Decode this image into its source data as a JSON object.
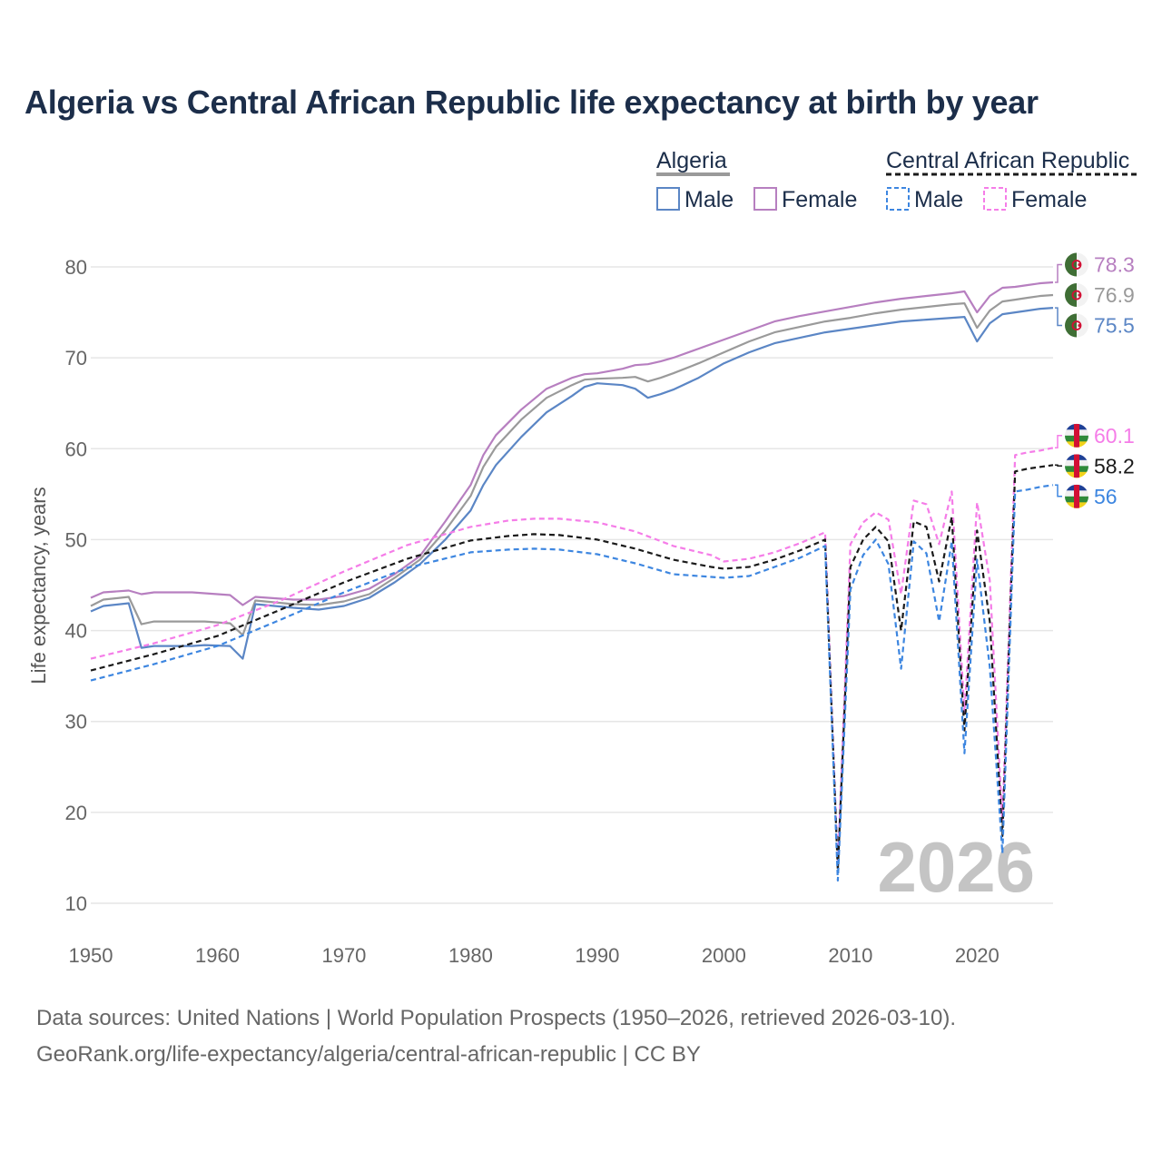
{
  "chart_data": {
    "type": "line",
    "title": "Algeria vs Central African Republic life expectancy at birth by year",
    "ylabel": "Life expectancy, years",
    "xlabel": "",
    "xlim": [
      1950,
      2026
    ],
    "ylim": [
      10,
      80
    ],
    "x_ticks": [
      1950,
      1960,
      1970,
      1980,
      1990,
      2000,
      2010,
      2020
    ],
    "y_ticks": [
      10,
      20,
      30,
      40,
      50,
      60,
      70,
      80
    ],
    "watermark_year": "2026",
    "legend": {
      "groups": [
        {
          "name": "Algeria",
          "entries": [
            "Male",
            "Female"
          ]
        },
        {
          "name": "Central African Republic",
          "entries": [
            "Male",
            "Female"
          ]
        }
      ]
    },
    "series": [
      {
        "name": "Algeria Female",
        "country": "Algeria",
        "color": "#b77fc0",
        "dashed": false,
        "end_label": "78.3",
        "points": [
          [
            1950,
            43.6
          ],
          [
            1951,
            44.2
          ],
          [
            1953,
            44.4
          ],
          [
            1954,
            44.0
          ],
          [
            1955,
            44.2
          ],
          [
            1958,
            44.2
          ],
          [
            1959,
            44.1
          ],
          [
            1961,
            43.9
          ],
          [
            1962,
            42.8
          ],
          [
            1963,
            43.7
          ],
          [
            1966,
            43.4
          ],
          [
            1968,
            43.4
          ],
          [
            1970,
            43.8
          ],
          [
            1972,
            44.6
          ],
          [
            1974,
            46.2
          ],
          [
            1976,
            48.2
          ],
          [
            1978,
            52.0
          ],
          [
            1980,
            56.0
          ],
          [
            1981,
            59.3
          ],
          [
            1982,
            61.5
          ],
          [
            1984,
            64.3
          ],
          [
            1986,
            66.6
          ],
          [
            1988,
            67.8
          ],
          [
            1989,
            68.2
          ],
          [
            1990,
            68.3
          ],
          [
            1992,
            68.8
          ],
          [
            1993,
            69.2
          ],
          [
            1994,
            69.3
          ],
          [
            1995,
            69.6
          ],
          [
            1996,
            70.0
          ],
          [
            1998,
            71.0
          ],
          [
            2000,
            72.0
          ],
          [
            2002,
            73.0
          ],
          [
            2004,
            74.0
          ],
          [
            2006,
            74.6
          ],
          [
            2008,
            75.1
          ],
          [
            2010,
            75.6
          ],
          [
            2012,
            76.1
          ],
          [
            2014,
            76.5
          ],
          [
            2016,
            76.8
          ],
          [
            2018,
            77.1
          ],
          [
            2019,
            77.3
          ],
          [
            2020,
            75.0
          ],
          [
            2021,
            76.8
          ],
          [
            2022,
            77.7
          ],
          [
            2023,
            77.8
          ],
          [
            2024,
            78.0
          ],
          [
            2025,
            78.2
          ],
          [
            2026,
            78.3
          ]
        ]
      },
      {
        "name": "Algeria Total",
        "country": "Algeria",
        "color": "#9a9a9a",
        "dashed": false,
        "end_label": "76.9",
        "points": [
          [
            1950,
            42.7
          ],
          [
            1951,
            43.4
          ],
          [
            1953,
            43.7
          ],
          [
            1954,
            40.7
          ],
          [
            1955,
            41.0
          ],
          [
            1958,
            41.0
          ],
          [
            1959,
            41.0
          ],
          [
            1961,
            40.8
          ],
          [
            1962,
            39.5
          ],
          [
            1963,
            43.3
          ],
          [
            1966,
            42.9
          ],
          [
            1968,
            42.8
          ],
          [
            1970,
            43.2
          ],
          [
            1972,
            44.0
          ],
          [
            1974,
            45.8
          ],
          [
            1976,
            47.8
          ],
          [
            1978,
            51.0
          ],
          [
            1980,
            54.8
          ],
          [
            1981,
            58.0
          ],
          [
            1982,
            60.2
          ],
          [
            1984,
            63.2
          ],
          [
            1986,
            65.6
          ],
          [
            1988,
            67.0
          ],
          [
            1989,
            67.6
          ],
          [
            1990,
            67.7
          ],
          [
            1992,
            67.8
          ],
          [
            1993,
            67.9
          ],
          [
            1994,
            67.4
          ],
          [
            1995,
            67.8
          ],
          [
            1996,
            68.3
          ],
          [
            1998,
            69.4
          ],
          [
            2000,
            70.6
          ],
          [
            2002,
            71.8
          ],
          [
            2004,
            72.8
          ],
          [
            2006,
            73.4
          ],
          [
            2008,
            74.0
          ],
          [
            2010,
            74.4
          ],
          [
            2012,
            74.9
          ],
          [
            2014,
            75.3
          ],
          [
            2016,
            75.6
          ],
          [
            2018,
            75.9
          ],
          [
            2019,
            76.0
          ],
          [
            2020,
            73.3
          ],
          [
            2021,
            75.2
          ],
          [
            2022,
            76.2
          ],
          [
            2023,
            76.4
          ],
          [
            2024,
            76.6
          ],
          [
            2025,
            76.8
          ],
          [
            2026,
            76.9
          ]
        ]
      },
      {
        "name": "Algeria Male",
        "country": "Algeria",
        "color": "#5b86c5",
        "dashed": false,
        "end_label": "75.5",
        "points": [
          [
            1950,
            42.1
          ],
          [
            1951,
            42.7
          ],
          [
            1953,
            43.0
          ],
          [
            1954,
            38.1
          ],
          [
            1955,
            38.3
          ],
          [
            1958,
            38.3
          ],
          [
            1959,
            38.4
          ],
          [
            1961,
            38.3
          ],
          [
            1962,
            36.9
          ],
          [
            1963,
            42.9
          ],
          [
            1966,
            42.5
          ],
          [
            1968,
            42.3
          ],
          [
            1970,
            42.7
          ],
          [
            1972,
            43.6
          ],
          [
            1974,
            45.3
          ],
          [
            1976,
            47.3
          ],
          [
            1978,
            50.0
          ],
          [
            1980,
            53.2
          ],
          [
            1981,
            56.0
          ],
          [
            1982,
            58.2
          ],
          [
            1984,
            61.3
          ],
          [
            1986,
            64.0
          ],
          [
            1988,
            65.8
          ],
          [
            1989,
            66.8
          ],
          [
            1990,
            67.2
          ],
          [
            1992,
            67.0
          ],
          [
            1993,
            66.6
          ],
          [
            1994,
            65.6
          ],
          [
            1995,
            66.0
          ],
          [
            1996,
            66.5
          ],
          [
            1998,
            67.8
          ],
          [
            2000,
            69.4
          ],
          [
            2002,
            70.6
          ],
          [
            2004,
            71.6
          ],
          [
            2006,
            72.2
          ],
          [
            2008,
            72.8
          ],
          [
            2010,
            73.2
          ],
          [
            2012,
            73.6
          ],
          [
            2014,
            74.0
          ],
          [
            2016,
            74.2
          ],
          [
            2018,
            74.4
          ],
          [
            2019,
            74.5
          ],
          [
            2020,
            71.8
          ],
          [
            2021,
            73.8
          ],
          [
            2022,
            74.8
          ],
          [
            2023,
            75.0
          ],
          [
            2024,
            75.2
          ],
          [
            2025,
            75.4
          ],
          [
            2026,
            75.5
          ]
        ]
      },
      {
        "name": "Central African Republic Female",
        "country": "Central African Republic",
        "color": "#f57de8",
        "dashed": true,
        "end_label": "60.1",
        "points": [
          [
            1950,
            36.9
          ],
          [
            1955,
            38.6
          ],
          [
            1960,
            40.6
          ],
          [
            1965,
            43.3
          ],
          [
            1970,
            46.5
          ],
          [
            1975,
            49.4
          ],
          [
            1980,
            51.4
          ],
          [
            1983,
            52.1
          ],
          [
            1985,
            52.3
          ],
          [
            1987,
            52.3
          ],
          [
            1990,
            51.9
          ],
          [
            1993,
            50.9
          ],
          [
            1996,
            49.3
          ],
          [
            1999,
            48.3
          ],
          [
            2000,
            47.6
          ],
          [
            2002,
            47.9
          ],
          [
            2004,
            48.6
          ],
          [
            2006,
            49.6
          ],
          [
            2008,
            50.8
          ],
          [
            2009,
            14.0
          ],
          [
            2010,
            49.5
          ],
          [
            2011,
            51.9
          ],
          [
            2012,
            53.0
          ],
          [
            2013,
            52.2
          ],
          [
            2014,
            44.0
          ],
          [
            2015,
            54.3
          ],
          [
            2016,
            53.9
          ],
          [
            2017,
            49.5
          ],
          [
            2018,
            55.3
          ],
          [
            2019,
            31.0
          ],
          [
            2020,
            54.1
          ],
          [
            2021,
            45.5
          ],
          [
            2022,
            19.0
          ],
          [
            2023,
            59.3
          ],
          [
            2024,
            59.6
          ],
          [
            2025,
            59.8
          ],
          [
            2026,
            60.1
          ]
        ]
      },
      {
        "name": "Central African Republic Total",
        "country": "Central African Republic",
        "color": "#1a1a1a",
        "dashed": true,
        "end_label": "58.2",
        "points": [
          [
            1950,
            35.6
          ],
          [
            1955,
            37.4
          ],
          [
            1960,
            39.4
          ],
          [
            1965,
            42.3
          ],
          [
            1970,
            45.3
          ],
          [
            1975,
            47.9
          ],
          [
            1980,
            49.9
          ],
          [
            1983,
            50.4
          ],
          [
            1985,
            50.6
          ],
          [
            1987,
            50.5
          ],
          [
            1990,
            50.0
          ],
          [
            1993,
            49.0
          ],
          [
            1996,
            47.8
          ],
          [
            1999,
            47.0
          ],
          [
            2000,
            46.8
          ],
          [
            2002,
            47.0
          ],
          [
            2004,
            47.8
          ],
          [
            2006,
            48.8
          ],
          [
            2008,
            50.0
          ],
          [
            2009,
            13.6
          ],
          [
            2010,
            47.0
          ],
          [
            2011,
            50.0
          ],
          [
            2012,
            51.4
          ],
          [
            2013,
            49.8
          ],
          [
            2014,
            40.0
          ],
          [
            2015,
            52.0
          ],
          [
            2016,
            51.4
          ],
          [
            2017,
            45.4
          ],
          [
            2018,
            52.5
          ],
          [
            2019,
            29.0
          ],
          [
            2020,
            51.0
          ],
          [
            2021,
            41.0
          ],
          [
            2022,
            17.4
          ],
          [
            2023,
            57.5
          ],
          [
            2024,
            57.8
          ],
          [
            2025,
            58.0
          ],
          [
            2026,
            58.2
          ]
        ]
      },
      {
        "name": "Central African Republic Male",
        "country": "Central African Republic",
        "color": "#3d86e0",
        "dashed": true,
        "end_label": "56",
        "points": [
          [
            1950,
            34.5
          ],
          [
            1955,
            36.3
          ],
          [
            1960,
            38.3
          ],
          [
            1965,
            41.2
          ],
          [
            1970,
            44.2
          ],
          [
            1975,
            46.9
          ],
          [
            1980,
            48.6
          ],
          [
            1983,
            48.9
          ],
          [
            1985,
            49.0
          ],
          [
            1987,
            48.9
          ],
          [
            1990,
            48.4
          ],
          [
            1993,
            47.4
          ],
          [
            1996,
            46.2
          ],
          [
            1999,
            45.9
          ],
          [
            2000,
            45.8
          ],
          [
            2002,
            46.0
          ],
          [
            2004,
            47.0
          ],
          [
            2006,
            48.0
          ],
          [
            2008,
            49.3
          ],
          [
            2009,
            12.5
          ],
          [
            2010,
            44.5
          ],
          [
            2011,
            48.3
          ],
          [
            2012,
            50.0
          ],
          [
            2013,
            47.3
          ],
          [
            2014,
            35.8
          ],
          [
            2015,
            49.8
          ],
          [
            2016,
            48.5
          ],
          [
            2017,
            41.0
          ],
          [
            2018,
            49.8
          ],
          [
            2019,
            26.5
          ],
          [
            2020,
            47.8
          ],
          [
            2021,
            36.0
          ],
          [
            2022,
            15.5
          ],
          [
            2023,
            55.3
          ],
          [
            2024,
            55.5
          ],
          [
            2025,
            55.8
          ],
          [
            2026,
            56.0
          ]
        ]
      }
    ]
  },
  "source_line1": "Data sources: United Nations | World Population Prospects (1950–2026, retrieved 2026-03-10).",
  "source_line2": "GeoRank.org/life-expectancy/algeria/central-african-republic | CC BY"
}
